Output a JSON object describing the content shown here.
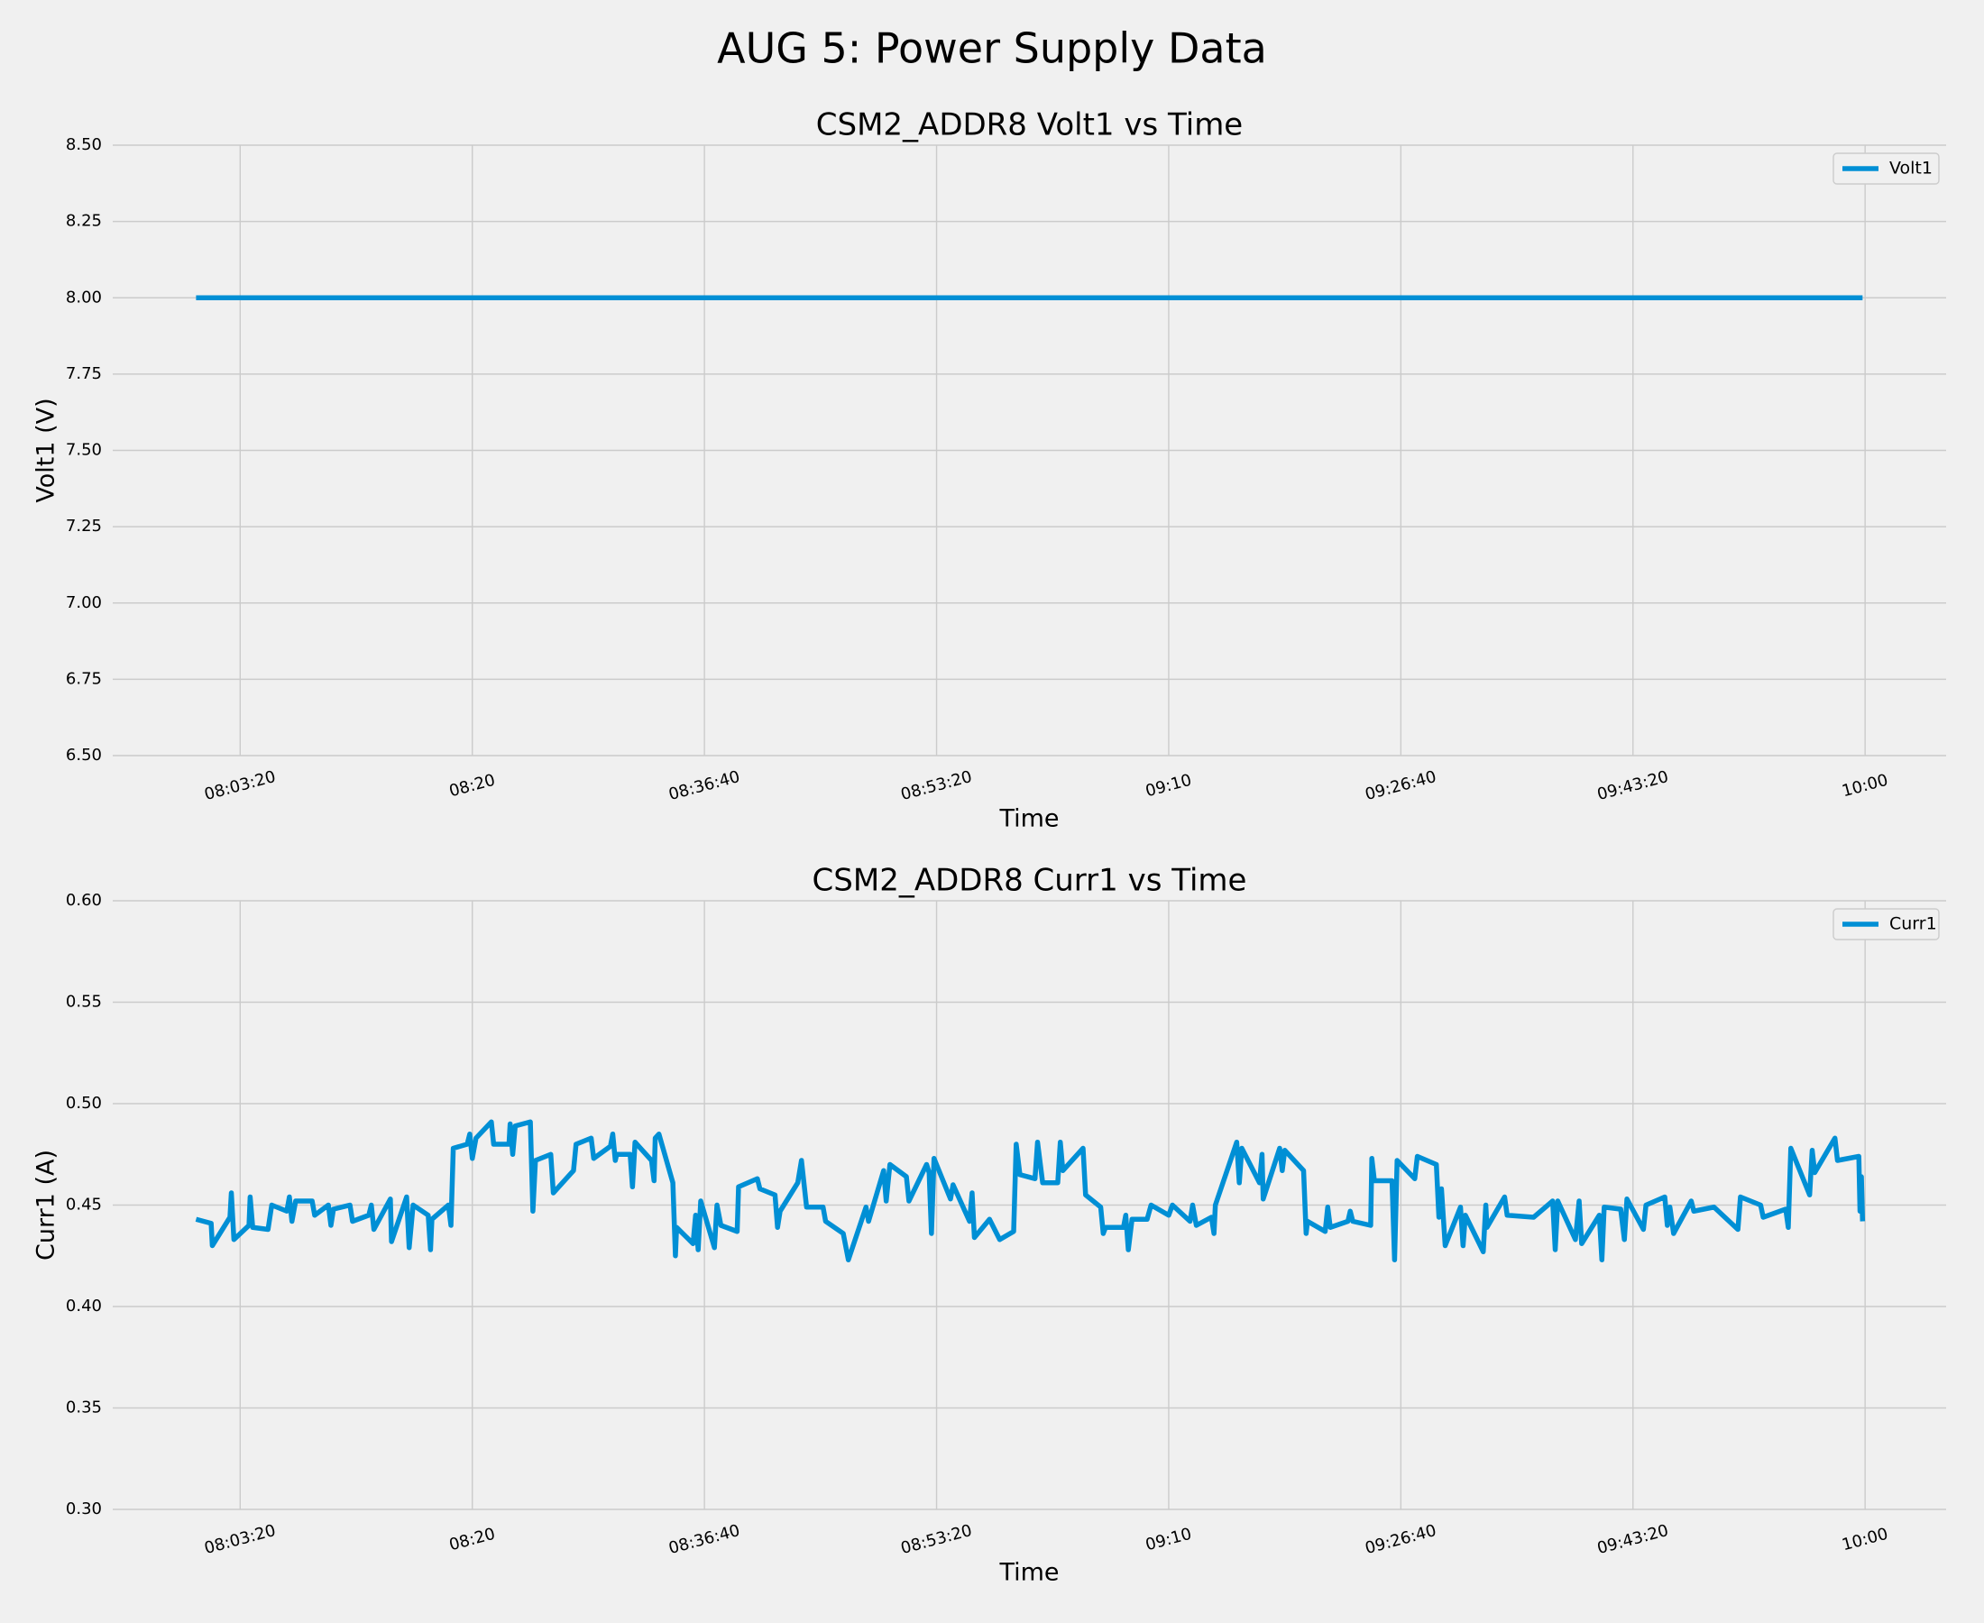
{
  "title": "AUG 5: Power Supply Data",
  "chart_data": [
    {
      "type": "line",
      "title": "CSM2_ADDR8 Volt1 vs Time",
      "x_label": "Time",
      "y_label": "Volt1 (V)",
      "x": [
        "08:00:10",
        "08:20:00",
        "08:40:00",
        "09:00:00",
        "09:20:00",
        "09:40:00",
        "09:59:49"
      ],
      "series": [
        {
          "name": "Volt1",
          "color": "#008fd5",
          "values": [
            8,
            8,
            8,
            8,
            8,
            8,
            8
          ]
        }
      ],
      "xlim": [
        "07:54:11",
        "10:05:49"
      ],
      "xticks": [
        "08:03:20",
        "08:20",
        "08:36:40",
        "08:53:20",
        "09:10",
        "09:26:40",
        "09:43:20",
        "10:00"
      ],
      "ylim": [
        6.5,
        8.5
      ],
      "yticks": [
        {
          "value": 6.5,
          "label": "6.50"
        },
        {
          "value": 6.75,
          "label": "6.75"
        },
        {
          "value": 7,
          "label": "7.00"
        },
        {
          "value": 7.25,
          "label": "7.25"
        },
        {
          "value": 7.5,
          "label": "7.50"
        },
        {
          "value": 7.75,
          "label": "7.75"
        },
        {
          "value": 8,
          "label": "8.00"
        },
        {
          "value": 8.25,
          "label": "8.25"
        },
        {
          "value": 8.5,
          "label": "8.50"
        }
      ],
      "grid": true,
      "legend": "upper right"
    },
    {
      "type": "line",
      "title": "CSM2_ADDR8 Curr1 vs Time",
      "x_label": "Time",
      "y_label": "Curr1 (A)",
      "x": [
        "08:00:10",
        "08:01:15",
        "08:01:20",
        "08:02:36",
        "08:02:42",
        "08:02:53",
        "08:03:58",
        "08:04:03",
        "08:04:14",
        "08:05:20",
        "08:05:36",
        "08:06:41",
        "08:06:52",
        "08:07:03",
        "08:07:19",
        "08:08:30",
        "08:08:41",
        "08:09:40",
        "08:09:51",
        "08:10:02",
        "08:11:13",
        "08:11:24",
        "08:12:34",
        "08:12:45",
        "08:12:56",
        "08:14:07",
        "08:14:12",
        "08:15:17",
        "08:15:28",
        "08:15:45",
        "08:16:50",
        "08:17:00",
        "08:17:06",
        "08:18:17",
        "08:18:28",
        "08:18:38",
        "08:19:38",
        "08:19:49",
        "08:20:00",
        "08:20:16",
        "08:21:22",
        "08:21:32",
        "08:22:38",
        "08:22:43",
        "08:22:54",
        "08:23:05",
        "08:24:10",
        "08:24:21",
        "08:24:32",
        "08:25:38",
        "08:25:49",
        "08:27:16",
        "08:27:27",
        "08:28:32",
        "08:28:43",
        "08:29:55",
        "08:30:05",
        "08:30:16",
        "08:30:22",
        "08:31:20",
        "08:31:30",
        "08:31:41",
        "08:32:52",
        "08:33:03",
        "08:33:08",
        "08:33:24",
        "08:34:24",
        "08:34:35",
        "08:34:40",
        "08:35:51",
        "08:36:02",
        "08:36:13",
        "08:36:24",
        "08:37:23",
        "08:37:34",
        "08:37:51",
        "08:39:01",
        "08:39:07",
        "08:40:28",
        "08:40:39",
        "08:41:44",
        "08:41:55",
        "08:42:06",
        "08:43:22",
        "08:43:38",
        "08:44:00",
        "08:45:11",
        "08:45:22",
        "08:46:38",
        "08:47:00",
        "08:48:16",
        "08:48:27",
        "08:49:32",
        "08:49:43",
        "08:49:59",
        "08:51:10",
        "08:51:21",
        "08:52:37",
        "08:52:48",
        "08:52:58",
        "08:53:09",
        "08:54:20",
        "08:54:31",
        "08:55:42",
        "08:55:53",
        "08:56:03",
        "08:57:08",
        "08:57:30",
        "08:57:52",
        "08:58:52",
        "08:59:03",
        "08:59:19",
        "09:00:24",
        "09:00:35",
        "09:00:57",
        "09:02:02",
        "09:02:13",
        "09:02:24",
        "09:03:51",
        "09:04:02",
        "09:05:07",
        "09:05:18",
        "09:05:28",
        "09:06:45",
        "09:06:55",
        "09:07:06",
        "09:07:22",
        "09:08:27",
        "09:08:44",
        "09:10:00",
        "09:10:16",
        "09:11:32",
        "09:11:43",
        "09:11:59",
        "09:13:04",
        "09:13:15",
        "09:13:21",
        "09:14:53",
        "09:15:04",
        "09:15:15",
        "09:16:31",
        "09:16:42",
        "09:16:47",
        "09:17:58",
        "09:18:09",
        "09:18:20",
        "09:19:41",
        "09:19:52",
        "09:19:58",
        "09:21:14",
        "09:21:25",
        "09:21:36",
        "09:22:52",
        "09:23:02",
        "09:23:13",
        "09:24:30",
        "09:24:35",
        "09:24:46",
        "09:26:02",
        "09:26:13",
        "09:26:24",
        "09:27:40",
        "09:27:51",
        "09:29:13",
        "09:29:24",
        "09:29:35",
        "09:29:51",
        "09:30:57",
        "09:31:08",
        "09:31:18",
        "09:32:35",
        "09:32:46",
        "09:32:51",
        "09:34:07",
        "09:34:18",
        "09:36:12",
        "09:37:34",
        "09:37:45",
        "09:37:56",
        "09:39:12",
        "09:39:28",
        "09:39:39",
        "09:40:55",
        "09:41:06",
        "09:41:16",
        "09:42:27",
        "09:42:43",
        "09:42:54",
        "09:44:05",
        "09:44:16",
        "09:45:37",
        "09:45:48",
        "09:45:59",
        "09:46:15",
        "09:47:31",
        "09:47:42",
        "09:49:09",
        "09:50:52",
        "09:51:03",
        "09:52:30",
        "09:52:41",
        "09:54:18",
        "09:54:29",
        "09:54:40",
        "09:56:01",
        "09:56:12",
        "09:56:23",
        "09:57:50",
        "09:58:01",
        "09:59:33",
        "09:59:38",
        "09:59:44",
        "09:59:49"
      ],
      "series": [
        {
          "name": "Curr1",
          "color": "#008fd5",
          "values": [
            0.443,
            0.441,
            0.43,
            0.444,
            0.456,
            0.433,
            0.44,
            0.454,
            0.439,
            0.438,
            0.45,
            0.447,
            0.454,
            0.442,
            0.452,
            0.452,
            0.445,
            0.45,
            0.44,
            0.448,
            0.45,
            0.442,
            0.445,
            0.45,
            0.438,
            0.453,
            0.432,
            0.454,
            0.429,
            0.45,
            0.445,
            0.428,
            0.443,
            0.45,
            0.44,
            0.478,
            0.48,
            0.485,
            0.473,
            0.483,
            0.491,
            0.48,
            0.48,
            0.49,
            0.475,
            0.489,
            0.491,
            0.447,
            0.472,
            0.475,
            0.456,
            0.467,
            0.48,
            0.483,
            0.473,
            0.479,
            0.485,
            0.472,
            0.475,
            0.475,
            0.459,
            0.481,
            0.472,
            0.462,
            0.483,
            0.485,
            0.461,
            0.425,
            0.439,
            0.431,
            0.445,
            0.428,
            0.452,
            0.429,
            0.45,
            0.44,
            0.437,
            0.459,
            0.463,
            0.458,
            0.455,
            0.439,
            0.447,
            0.461,
            0.472,
            0.449,
            0.449,
            0.442,
            0.436,
            0.423,
            0.449,
            0.442,
            0.467,
            0.452,
            0.47,
            0.464,
            0.452,
            0.47,
            0.466,
            0.436,
            0.473,
            0.453,
            0.46,
            0.442,
            0.456,
            0.434,
            0.443,
            0.438,
            0.433,
            0.437,
            0.48,
            0.465,
            0.463,
            0.481,
            0.461,
            0.461,
            0.481,
            0.467,
            0.478,
            0.455,
            0.449,
            0.436,
            0.439,
            0.439,
            0.445,
            0.428,
            0.443,
            0.443,
            0.45,
            0.445,
            0.45,
            0.442,
            0.45,
            0.44,
            0.444,
            0.436,
            0.45,
            0.481,
            0.461,
            0.478,
            0.461,
            0.475,
            0.453,
            0.478,
            0.467,
            0.477,
            0.467,
            0.436,
            0.442,
            0.437,
            0.449,
            0.439,
            0.442,
            0.447,
            0.442,
            0.44,
            0.473,
            0.462,
            0.462,
            0.423,
            0.472,
            0.463,
            0.474,
            0.47,
            0.444,
            0.458,
            0.43,
            0.449,
            0.43,
            0.445,
            0.427,
            0.45,
            0.439,
            0.454,
            0.445,
            0.444,
            0.452,
            0.428,
            0.452,
            0.433,
            0.452,
            0.431,
            0.445,
            0.423,
            0.449,
            0.448,
            0.433,
            0.453,
            0.438,
            0.45,
            0.454,
            0.44,
            0.449,
            0.436,
            0.452,
            0.447,
            0.449,
            0.438,
            0.454,
            0.45,
            0.444,
            0.448,
            0.439,
            0.478,
            0.455,
            0.477,
            0.466,
            0.483,
            0.472,
            0.474,
            0.447,
            0.464,
            0.442
          ]
        }
      ],
      "xlim": [
        "07:54:11",
        "10:05:49"
      ],
      "xticks": [
        "08:03:20",
        "08:20",
        "08:36:40",
        "08:53:20",
        "09:10",
        "09:26:40",
        "09:43:20",
        "10:00"
      ],
      "ylim": [
        0.3,
        0.6
      ],
      "yticks": [
        {
          "value": 0.3,
          "label": "0.30"
        },
        {
          "value": 0.35,
          "label": "0.35"
        },
        {
          "value": 0.4,
          "label": "0.40"
        },
        {
          "value": 0.45,
          "label": "0.45"
        },
        {
          "value": 0.5,
          "label": "0.50"
        },
        {
          "value": 0.55,
          "label": "0.55"
        },
        {
          "value": 0.6,
          "label": "0.60"
        }
      ],
      "grid": true,
      "legend": "upper right"
    }
  ]
}
